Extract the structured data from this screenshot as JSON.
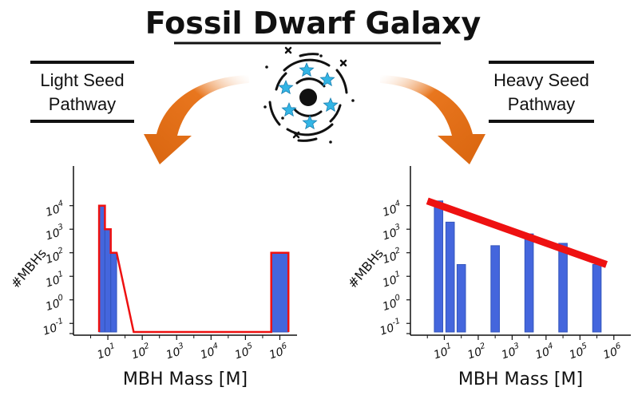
{
  "title": "Fossil Dwarf Galaxy",
  "left_label": [
    "Light Seed",
    "Pathway"
  ],
  "right_label": [
    "Heavy Seed",
    "Pathway"
  ],
  "colors": {
    "bar": "#4466dd",
    "bar_stroke": "#3355bb",
    "highlight": "#ee1111",
    "arrow": "#e8761e",
    "star": "#33b5e5"
  },
  "chart_data": [
    {
      "type": "bar",
      "name": "light-seed",
      "xlabel": "MBH Mass [M]",
      "ylabel": "#MBHs",
      "x_ticks": [
        {
          "base": "10",
          "exp": "1"
        },
        {
          "base": "10",
          "exp": "2"
        },
        {
          "base": "10",
          "exp": "3"
        },
        {
          "base": "10",
          "exp": "4"
        },
        {
          "base": "10",
          "exp": "5"
        },
        {
          "base": "10",
          "exp": "6"
        }
      ],
      "y_ticks": [
        {
          "base": "10",
          "exp": "4"
        },
        {
          "base": "10",
          "exp": "3"
        },
        {
          "base": "10",
          "exp": "2"
        },
        {
          "base": "10",
          "exp": "1"
        },
        {
          "base": "10",
          "exp": "0"
        },
        {
          "base": "10",
          "exp": "-1"
        }
      ],
      "bars": [
        {
          "center": 0.33,
          "width": 0.17,
          "value": 4.0
        },
        {
          "center": 0.5,
          "width": 0.17,
          "value": 3.0
        },
        {
          "center": 0.67,
          "width": 0.17,
          "value": 2.0
        },
        {
          "center": 1.5,
          "width": 0.5,
          "value": 0.0
        },
        {
          "center": 2.0,
          "width": 0.5,
          "value": 0.0
        },
        {
          "center": 2.5,
          "width": 0.5,
          "value": 0.0
        },
        {
          "center": 3.0,
          "width": 0.5,
          "value": 0.0
        },
        {
          "center": 3.5,
          "width": 0.5,
          "value": 0.0
        },
        {
          "center": 4.0,
          "width": 0.5,
          "value": 0.0
        },
        {
          "center": 4.5,
          "width": 0.5,
          "value": 0.0
        },
        {
          "center": 5.0,
          "width": 0.5,
          "value": 0.0
        },
        {
          "center": 5.5,
          "width": 0.5,
          "value": 2.0
        }
      ],
      "outline": true
    },
    {
      "type": "bar",
      "name": "heavy-seed",
      "xlabel": "MBH Mass [M]",
      "ylabel": "#MBHs",
      "x_ticks": [
        {
          "base": "10",
          "exp": "1"
        },
        {
          "base": "10",
          "exp": "2"
        },
        {
          "base": "10",
          "exp": "3"
        },
        {
          "base": "10",
          "exp": "4"
        },
        {
          "base": "10",
          "exp": "5"
        },
        {
          "base": "10",
          "exp": "6"
        }
      ],
      "y_ticks": [
        {
          "base": "10",
          "exp": "4"
        },
        {
          "base": "10",
          "exp": "3"
        },
        {
          "base": "10",
          "exp": "2"
        },
        {
          "base": "10",
          "exp": "1"
        },
        {
          "base": "10",
          "exp": "0"
        },
        {
          "base": "10",
          "exp": "-1"
        }
      ],
      "bars": [
        {
          "center": 0.33,
          "width": 0.25,
          "value": 4.2
        },
        {
          "center": 0.67,
          "width": 0.25,
          "value": 3.3
        },
        {
          "center": 1.0,
          "width": 0.25,
          "value": 1.5
        },
        {
          "center": 2.0,
          "width": 0.25,
          "value": 2.3
        },
        {
          "center": 3.0,
          "width": 0.25,
          "value": 2.8
        },
        {
          "center": 4.0,
          "width": 0.25,
          "value": 2.4
        },
        {
          "center": 5.0,
          "width": 0.25,
          "value": 1.5
        }
      ],
      "trend_line": {
        "from": [
          0.0,
          4.2
        ],
        "to": [
          5.0,
          1.5
        ]
      }
    }
  ]
}
